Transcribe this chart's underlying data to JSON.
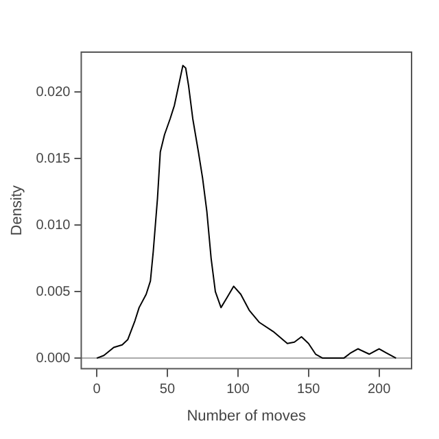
{
  "chart_data": {
    "type": "line",
    "xlabel": "Number of moves",
    "ylabel": "Density",
    "x": [
      0,
      5,
      12,
      18,
      22,
      27,
      30,
      35,
      38,
      40,
      43,
      45,
      48,
      52,
      55,
      58,
      61,
      63,
      65,
      68,
      72,
      75,
      78,
      81,
      84,
      88,
      92,
      97,
      102,
      108,
      115,
      125,
      135,
      140,
      145,
      150,
      155,
      160,
      175,
      180,
      185,
      193,
      200,
      205,
      212
    ],
    "series": [
      {
        "color": "#000000",
        "values": [
          0,
          0.0002,
          0.0008,
          0.001,
          0.0014,
          0.0028,
          0.0038,
          0.0048,
          0.0058,
          0.008,
          0.012,
          0.0155,
          0.0168,
          0.018,
          0.019,
          0.0205,
          0.022,
          0.0218,
          0.0205,
          0.018,
          0.0155,
          0.0135,
          0.011,
          0.0075,
          0.005,
          0.0038,
          0.0045,
          0.0054,
          0.0048,
          0.0036,
          0.0027,
          0.002,
          0.0011,
          0.0012,
          0.0016,
          0.0011,
          0.0003,
          0,
          0,
          0.0004,
          0.0007,
          0.0003,
          0.0007,
          0.0004,
          0
        ]
      }
    ],
    "xlim": [
      -11,
      223
    ],
    "xticks": [
      0,
      50,
      100,
      150,
      200
    ],
    "ylim": [
      -0.0008,
      0.023
    ],
    "yticks": [
      {
        "value": 0,
        "label": "0.000"
      },
      {
        "value": 0.005,
        "label": "0.005"
      },
      {
        "value": 0.01,
        "label": "0.010"
      },
      {
        "value": 0.015,
        "label": "0.015"
      },
      {
        "value": 0.02,
        "label": "0.020"
      }
    ],
    "ref_lines": [
      {
        "axis": "y",
        "value": 0,
        "color": "#aaaaaa"
      }
    ],
    "grid": false,
    "legend": false,
    "marker": "none",
    "line_style": "solid"
  }
}
